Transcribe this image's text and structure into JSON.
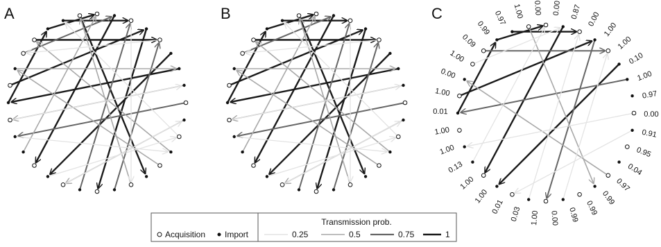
{
  "panels": [
    {
      "letter": "A"
    },
    {
      "letter": "B"
    },
    {
      "letter": "C"
    }
  ],
  "legend": {
    "acquisition_label": "Acquisition",
    "import_label": "Import",
    "title": "Transmission prob.",
    "items": [
      {
        "label": "0.25",
        "color": "#e3e3e3"
      },
      {
        "label": "0.5",
        "color": "#a8a8a8"
      },
      {
        "label": "0.75",
        "color": "#666666"
      },
      {
        "label": "1",
        "color": "#1a1a1a"
      }
    ]
  },
  "nodes": [
    "acq",
    "imp",
    "acq",
    "imp",
    "acq",
    "imp",
    "imp",
    "imp",
    "acq",
    "imp",
    "acq",
    "imp",
    "acq",
    "imp",
    "acq",
    "imp",
    "acq",
    "imp",
    "acq",
    "imp",
    "acq",
    "imp",
    "imp",
    "acq",
    "imp",
    "acq",
    "imp",
    "acq",
    "acq",
    "imp",
    "imp",
    "acq"
  ],
  "edges_ab": [
    {
      "from": 29,
      "to": 0,
      "p": 1
    },
    {
      "from": 5,
      "to": 19,
      "p": 1
    },
    {
      "from": 30,
      "to": 2,
      "p": 1
    },
    {
      "from": 24,
      "to": 29,
      "p": 1
    },
    {
      "from": 25,
      "to": 3,
      "p": 1
    },
    {
      "from": 6,
      "to": 24,
      "p": 1
    },
    {
      "from": 1,
      "to": 20,
      "p": 1
    },
    {
      "from": 28,
      "to": 4,
      "p": 1
    },
    {
      "from": 31,
      "to": 13,
      "p": 1
    },
    {
      "from": 3,
      "to": 16,
      "p": 1
    },
    {
      "from": 17,
      "to": 2,
      "p": 0.75
    },
    {
      "from": 27,
      "to": 1,
      "p": 0.75
    },
    {
      "from": 8,
      "to": 22,
      "p": 0.75
    },
    {
      "from": 15,
      "to": 4,
      "p": 0.75
    },
    {
      "from": 12,
      "to": 26,
      "p": 0.5
    },
    {
      "from": 9,
      "to": 18,
      "p": 0.5
    },
    {
      "from": 21,
      "to": 0,
      "p": 0.5
    },
    {
      "from": 11,
      "to": 28,
      "p": 0.5
    },
    {
      "from": 7,
      "to": 23,
      "p": 0.5
    },
    {
      "from": 26,
      "to": 6,
      "p": 0.5
    },
    {
      "from": 14,
      "to": 31,
      "p": 0.5
    },
    {
      "from": 19,
      "to": 10,
      "p": 0.25
    },
    {
      "from": 10,
      "to": 30,
      "p": 0.25
    },
    {
      "from": 23,
      "to": 7,
      "p": 0.25
    },
    {
      "from": 18,
      "to": 9,
      "p": 0.25
    },
    {
      "from": 2,
      "to": 14,
      "p": 0.25
    },
    {
      "from": 22,
      "to": 11,
      "p": 0.25
    },
    {
      "from": 4,
      "to": 27,
      "p": 0.25
    }
  ],
  "edges_c": [
    {
      "from": 29,
      "to": 0,
      "p": 1
    },
    {
      "from": 5,
      "to": 19,
      "p": 1
    },
    {
      "from": 30,
      "to": 2,
      "p": 1
    },
    {
      "from": 24,
      "to": 29,
      "p": 1
    },
    {
      "from": 25,
      "to": 3,
      "p": 1
    },
    {
      "from": 1,
      "to": 20,
      "p": 1
    },
    {
      "from": 6,
      "to": 24,
      "p": 0.75
    },
    {
      "from": 28,
      "to": 4,
      "p": 0.75
    },
    {
      "from": 3,
      "to": 16,
      "p": 0.75
    },
    {
      "from": 31,
      "to": 13,
      "p": 0.5
    },
    {
      "from": 12,
      "to": 26,
      "p": 0.5
    },
    {
      "from": 17,
      "to": 2,
      "p": 0.25
    },
    {
      "from": 8,
      "to": 22,
      "p": 0.25
    },
    {
      "from": 9,
      "to": 18,
      "p": 0.25
    },
    {
      "from": 15,
      "to": 4,
      "p": 0.25
    },
    {
      "from": 27,
      "to": 1,
      "p": 0.25
    },
    {
      "from": 21,
      "to": 0,
      "p": 0.25
    }
  ],
  "c_labels": [
    "0.00",
    "0.87",
    "0.00",
    "1.00",
    "1.00",
    "0.10",
    "1.00",
    "0.97",
    "0.00",
    "0.91",
    "0.95",
    "0.04",
    "0.97",
    "0.99",
    "0.99",
    "0.99",
    "0.00",
    "1.00",
    "0.03",
    "0.01",
    "1.00",
    "1.00",
    "0.13",
    "1.00",
    "1.00",
    "0.01",
    "1.00",
    "0.00",
    "1.00",
    "0.09",
    "0.99",
    "0.97",
    "1.00",
    "0.00"
  ]
}
